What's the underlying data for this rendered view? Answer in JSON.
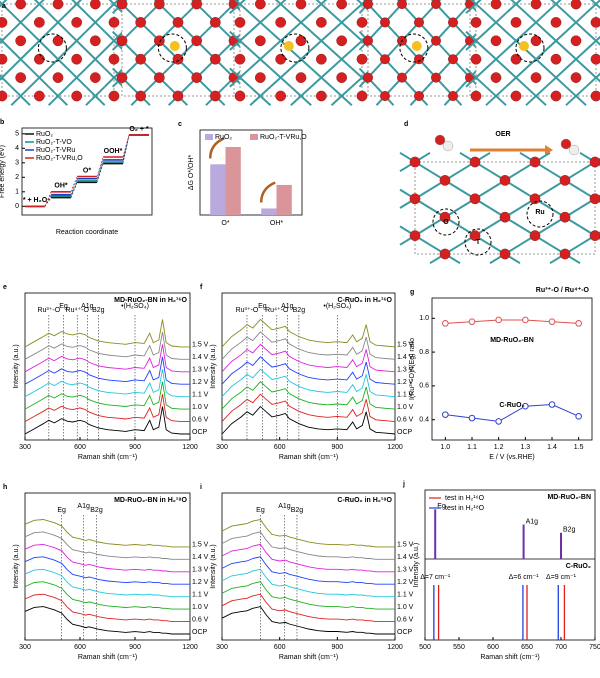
{
  "panels": {
    "a": {
      "panel": "a"
    },
    "d": {
      "panel": "d",
      "labels": [
        "OER",
        "O",
        "T",
        "Ru"
      ]
    }
  },
  "chart_data": [
    {
      "type": "step",
      "panel": "b",
      "ylabel": "Free energy (eV)",
      "xlabel": "Reaction coordinate",
      "categories": [
        "* + H₂O",
        "OH*",
        "O*",
        "OOH*",
        "O₂ + *"
      ],
      "ylim": [
        -0.6,
        5.4
      ],
      "yticks": [
        0,
        1,
        2,
        3,
        4,
        5
      ],
      "series": [
        {
          "name": "RuO₂",
          "color": "#111111",
          "values": [
            0,
            0.6,
            1.65,
            2.95,
            4.92
          ]
        },
        {
          "name": "RuO₂-T-VO",
          "color": "#1a8a8a",
          "values": [
            0,
            0.7,
            1.75,
            3.05,
            4.92
          ]
        },
        {
          "name": "RuO₂-T-VRu",
          "color": "#2040c0",
          "values": [
            0,
            0.8,
            1.9,
            3.2,
            4.92
          ]
        },
        {
          "name": "RuO₂-T-VRu,O",
          "color": "#d02020",
          "values": [
            0,
            1.0,
            2.05,
            3.4,
            4.92
          ]
        }
      ]
    },
    {
      "type": "bar",
      "panel": "c",
      "ylabel": "ΔG O*/OH*",
      "categories": [
        "O*",
        "OH*"
      ],
      "ylim": [
        0,
        2.6
      ],
      "series": [
        {
          "name": "RuO₂",
          "color": "#b9a9dd",
          "values": [
            1.55,
            0.2
          ]
        },
        {
          "name": "RuO₂-T-VRu,O",
          "color": "#d9959a",
          "values": [
            2.08,
            0.92
          ]
        }
      ]
    },
    {
      "type": "spectra",
      "panel": "e",
      "title": "MD-RuO₂-BN in H₂¹⁶O",
      "xlabel": "Raman shift (cm⁻¹)",
      "ylabel": "Intensity (a.u.)",
      "xlim": [
        300,
        1200
      ],
      "xticks": [
        300,
        600,
        900,
        1200
      ],
      "x": [
        300,
        350,
        400,
        430,
        460,
        500,
        530,
        560,
        600,
        630,
        650,
        700,
        750,
        800,
        850,
        900,
        950,
        980,
        1000,
        1030,
        1050,
        1070,
        1100,
        1150,
        1200
      ],
      "profile": [
        1,
        1.6,
        2.2,
        2.6,
        2.3,
        2.8,
        2.5,
        2.4,
        2.6,
        2.4,
        2.1,
        1.7,
        1.5,
        1.4,
        1.3,
        1.5,
        1.4,
        2.6,
        1.5,
        1.8,
        4.2,
        1.5,
        1.1,
        1.0,
        1.0
      ],
      "peaks": [
        {
          "label": "Ru³⁺-O",
          "x": 430
        },
        {
          "label": "Eg",
          "x": 510
        },
        {
          "label": "Ru⁴⁺-O",
          "x": 585
        },
        {
          "label": "A1g",
          "x": 640
        },
        {
          "label": "B2g",
          "x": 700
        },
        {
          "label": "•(H₂SO₄)",
          "x": 900
        }
      ],
      "series": [
        {
          "name": "1.5 V",
          "color": "#8b8b20"
        },
        {
          "name": "1.4 V",
          "color": "#888888"
        },
        {
          "name": "1.3 V",
          "color": "#e020e0"
        },
        {
          "name": "1.2 V",
          "color": "#2040ff"
        },
        {
          "name": "1.1 V",
          "color": "#20c8e0"
        },
        {
          "name": "1.0 V",
          "color": "#20b020"
        },
        {
          "name": "0.6 V",
          "color": "#e02020"
        },
        {
          "name": "OCP",
          "color": "#000000"
        }
      ]
    },
    {
      "type": "spectra",
      "panel": "f",
      "title": "C-RuO₂ in H₂¹⁶O",
      "xlabel": "Raman shift (cm⁻¹)",
      "ylabel": "Intensity (a.u.)",
      "xlim": [
        300,
        1200
      ],
      "xticks": [
        300,
        600,
        900,
        1200
      ],
      "x": [
        300,
        350,
        400,
        430,
        460,
        500,
        530,
        560,
        600,
        630,
        650,
        700,
        750,
        800,
        850,
        900,
        950,
        980,
        1000,
        1030,
        1050,
        1070,
        1100,
        1150,
        1200
      ],
      "profile": [
        1,
        2.2,
        3.0,
        3.6,
        3.2,
        4.2,
        3.6,
        3.0,
        3.2,
        3.4,
        2.8,
        2.2,
        1.8,
        1.6,
        1.5,
        1.6,
        1.5,
        2.4,
        1.6,
        2.0,
        3.6,
        1.6,
        1.2,
        1.1,
        1.0
      ],
      "peaks": [
        {
          "label": "Ru³⁺-O",
          "x": 430
        },
        {
          "label": "Eg",
          "x": 510
        },
        {
          "label": "Ru⁴⁺-O",
          "x": 585
        },
        {
          "label": "A1g",
          "x": 640
        },
        {
          "label": "B2g",
          "x": 700
        },
        {
          "label": "•(H₂SO₄)",
          "x": 900
        }
      ],
      "series": [
        {
          "name": "1.5 V",
          "color": "#8b8b20"
        },
        {
          "name": "1.4 V",
          "color": "#888888"
        },
        {
          "name": "1.3 V",
          "color": "#e020e0"
        },
        {
          "name": "1.2 V",
          "color": "#2040ff"
        },
        {
          "name": "1.1 V",
          "color": "#20c8e0"
        },
        {
          "name": "1.0 V",
          "color": "#20b020"
        },
        {
          "name": "0.6 V",
          "color": "#e02020"
        },
        {
          "name": "OCP",
          "color": "#000000"
        }
      ]
    },
    {
      "type": "line",
      "panel": "g",
      "title": "Ru³⁺-O / Ru⁴⁺-O",
      "xlabel": "E / V (vs.RHE)",
      "ylabel": "I(Ru³⁺-O)/I(Eg) ratio",
      "x": [
        1.0,
        1.1,
        1.2,
        1.3,
        1.4,
        1.5
      ],
      "xlim": [
        0.95,
        1.55
      ],
      "xticks": [
        {
          "value": 1,
          "label": "1.0"
        },
        1.1,
        1.2,
        1.3,
        1.4,
        1.5
      ],
      "ylim": [
        0.28,
        1.12
      ],
      "yticks": [
        0.4,
        0.6,
        0.8,
        {
          "value": 1,
          "label": "1.0"
        }
      ],
      "series": [
        {
          "name": "MD-RuO₂-BN",
          "color": "#e05050",
          "values": [
            0.97,
            0.98,
            0.99,
            0.99,
            0.98,
            0.97
          ]
        },
        {
          "name": "C-RuO₂",
          "color": "#3040d0",
          "values": [
            0.43,
            0.41,
            0.39,
            0.48,
            0.49,
            0.42
          ]
        }
      ]
    },
    {
      "type": "spectra",
      "panel": "h",
      "title": "MD-RuO₂-BN in H₂¹⁸O",
      "xlabel": "Raman shift (cm⁻¹)",
      "ylabel": "Intensity (a.u.)",
      "xlim": [
        300,
        1200
      ],
      "xticks": [
        300,
        600,
        900,
        1200
      ],
      "x": [
        300,
        350,
        400,
        430,
        460,
        500,
        530,
        560,
        600,
        630,
        650,
        700,
        750,
        800,
        850,
        900,
        950,
        980,
        1000,
        1030,
        1050,
        1070,
        1100,
        1150,
        1200
      ],
      "profile": [
        4,
        4.5,
        4.6,
        4.4,
        4.2,
        3.8,
        3.0,
        2.4,
        2.2,
        2.0,
        2.1,
        1.8,
        1.6,
        1.5,
        1.4,
        1.5,
        1.4,
        1.5,
        1.4,
        1.4,
        1.3,
        1.3,
        1.2,
        1.2,
        1.2
      ],
      "peaks": [
        {
          "label": "Eg",
          "x": 500
        },
        {
          "label": "A1g",
          "x": 620
        },
        {
          "label": "B2g",
          "x": 690
        }
      ],
      "series": [
        {
          "name": "1.5 V",
          "color": "#8b8b20"
        },
        {
          "name": "1.4 V",
          "color": "#888888"
        },
        {
          "name": "1.3 V",
          "color": "#e020e0"
        },
        {
          "name": "1.2 V",
          "color": "#2040ff"
        },
        {
          "name": "1.1 V",
          "color": "#20c8e0"
        },
        {
          "name": "1.0 V",
          "color": "#20b020"
        },
        {
          "name": "0.6 V",
          "color": "#e02020"
        },
        {
          "name": "OCP",
          "color": "#000000"
        }
      ]
    },
    {
      "type": "spectra",
      "panel": "i",
      "title": "C-RuO₂ in H₂¹⁸O",
      "xlabel": "Raman shift (cm⁻¹)",
      "ylabel": "Intensity (a.u.)",
      "xlim": [
        300,
        1200
      ],
      "xticks": [
        300,
        600,
        900,
        1200
      ],
      "x": [
        300,
        350,
        400,
        430,
        460,
        500,
        530,
        560,
        600,
        630,
        650,
        700,
        750,
        800,
        850,
        900,
        950,
        980,
        1000,
        1030,
        1050,
        1070,
        1100,
        1150,
        1200
      ],
      "profile": [
        3.2,
        3.8,
        4.0,
        4.1,
        4.4,
        4.6,
        3.6,
        2.8,
        2.6,
        2.7,
        2.5,
        2.2,
        1.9,
        1.7,
        1.6,
        1.6,
        1.5,
        1.6,
        1.5,
        1.5,
        1.4,
        1.4,
        1.3,
        1.3,
        1.3
      ],
      "peaks": [
        {
          "label": "Eg",
          "x": 500
        },
        {
          "label": "A1g",
          "x": 625
        },
        {
          "label": "B2g",
          "x": 690
        }
      ],
      "series": [
        {
          "name": "1.5 V",
          "color": "#8b8b20"
        },
        {
          "name": "1.4 V",
          "color": "#888888"
        },
        {
          "name": "1.3 V",
          "color": "#e020e0"
        },
        {
          "name": "1.2 V",
          "color": "#2040ff"
        },
        {
          "name": "1.1 V",
          "color": "#20c8e0"
        },
        {
          "name": "1.0 V",
          "color": "#20b020"
        },
        {
          "name": "0.6 V",
          "color": "#e02020"
        },
        {
          "name": "OCP",
          "color": "#000000"
        }
      ]
    },
    {
      "type": "stick",
      "panel": "j",
      "title": "MD-RuO₂-BN",
      "subtitle": "C-RuO₂",
      "xlabel": "Raman shift (cm⁻¹)",
      "ylabel": "Intensity (a.u.)",
      "xlim": [
        500,
        750
      ],
      "xticks": [
        500,
        550,
        600,
        650,
        700,
        750
      ],
      "reference": {
        "color": "#7030a0",
        "x": [
          515,
          645,
          700
        ],
        "labels": [
          "Eg",
          "A1g",
          "B2g"
        ]
      },
      "series": [
        {
          "name": "test in H₂¹⁶O",
          "color": "#e02020",
          "x": [
            520,
            650,
            705
          ]
        },
        {
          "name": "test in H₂¹⁸O",
          "color": "#2040e0",
          "x": [
            513,
            644,
            696
          ]
        }
      ],
      "deltas": [
        "Δ=7 cm⁻¹",
        "Δ=6 cm⁻¹",
        "Δ=9 cm⁻¹"
      ]
    }
  ]
}
